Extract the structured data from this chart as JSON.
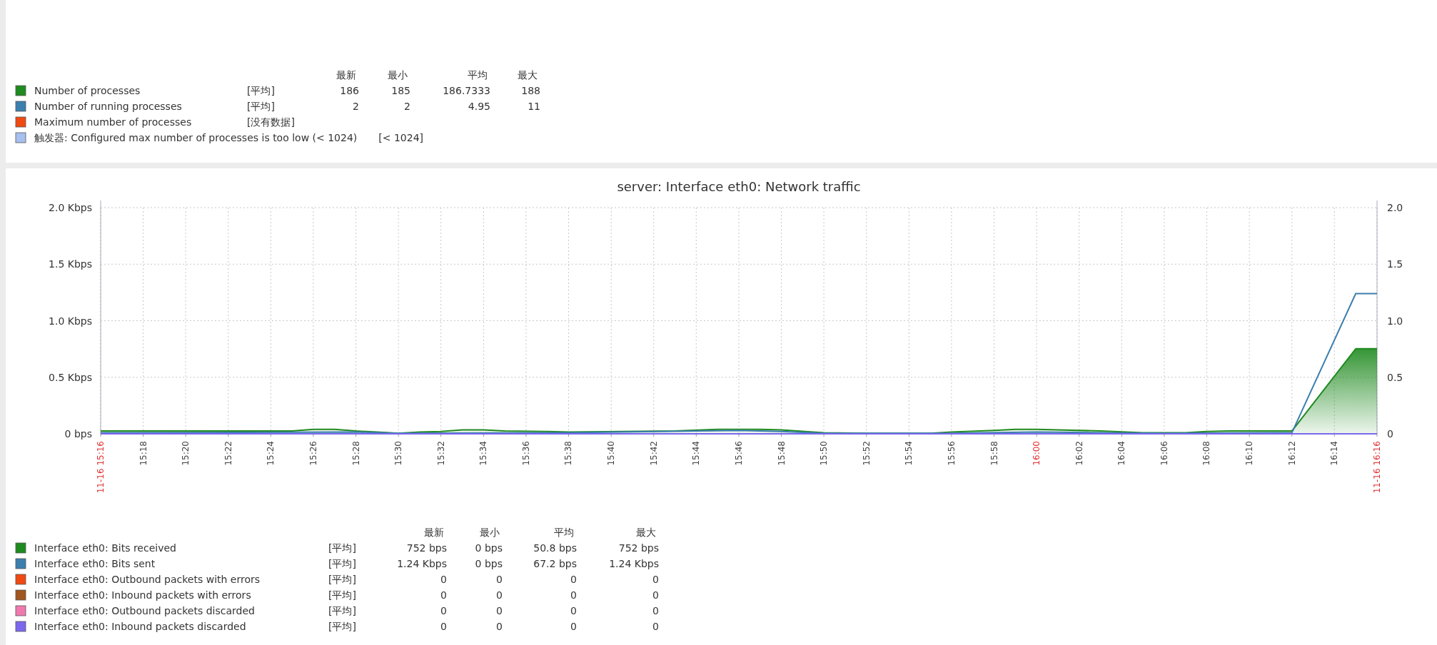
{
  "chart_data": [
    {
      "type": "other",
      "colors": [
        null,
        "#1f8a1f",
        "#3b7fae",
        "#f04a12",
        "#a8c0f0"
      ],
      "annotations": [
        "最新\t最小\t平均\t最大",
        "Number of processes\t[平均]\t186\t185\t186.7333\t188",
        "Number of running processes\t[平均]\t2\t2\t4.95\t11",
        "Maximum number of processes\t[没有数据]",
        "触发器: Configured max number of processes is too low (< 1024)\t[< 1024]"
      ]
    },
    {
      "type": "line",
      "title": "server: Interface eth0: Network traffic",
      "grid": true,
      "legend": "bottom",
      "xlim": [
        15.2667,
        16.2667
      ],
      "xticks": [
        {
          "value": 15.2667,
          "label": "11-16 15:16"
        },
        {
          "value": 15.3,
          "label": "15:18"
        },
        {
          "value": 15.3333,
          "label": "15:20"
        },
        {
          "value": 15.3667,
          "label": "15:22"
        },
        {
          "value": 15.4,
          "label": "15:24"
        },
        {
          "value": 15.4333,
          "label": "15:26"
        },
        {
          "value": 15.4667,
          "label": "15:28"
        },
        {
          "value": 15.5,
          "label": "15:30"
        },
        {
          "value": 15.5333,
          "label": "15:32"
        },
        {
          "value": 15.5667,
          "label": "15:34"
        },
        {
          "value": 15.6,
          "label": "15:36"
        },
        {
          "value": 15.6333,
          "label": "15:38"
        },
        {
          "value": 15.6667,
          "label": "15:40"
        },
        {
          "value": 15.7,
          "label": "15:42"
        },
        {
          "value": 15.7333,
          "label": "15:44"
        },
        {
          "value": 15.7667,
          "label": "15:46"
        },
        {
          "value": 15.8,
          "label": "15:48"
        },
        {
          "value": 15.8333,
          "label": "15:50"
        },
        {
          "value": 15.8667,
          "label": "15:52"
        },
        {
          "value": 15.9,
          "label": "15:54"
        },
        {
          "value": 15.9333,
          "label": "15:56"
        },
        {
          "value": 15.9667,
          "label": "15:58"
        },
        {
          "value": 16,
          "label": "16:00"
        },
        {
          "value": 16.0333,
          "label": "16:02"
        },
        {
          "value": 16.0667,
          "label": "16:04"
        },
        {
          "value": 16.1,
          "label": "16:06"
        },
        {
          "value": 16.1333,
          "label": "16:08"
        },
        {
          "value": 16.1667,
          "label": "16:10"
        },
        {
          "value": 16.2,
          "label": "16:12"
        },
        {
          "value": 16.2333,
          "label": "16:14"
        },
        {
          "value": 16.2667,
          "label": "11-16 16:16"
        }
      ],
      "ylim": [
        0,
        2
      ],
      "yticks": [
        {
          "value": 0,
          "label": "0 bps"
        },
        {
          "value": 0.5,
          "label": "0.5 Kbps"
        },
        {
          "value": 1,
          "label": "1.0 Kbps"
        },
        {
          "value": 1.5,
          "label": "1.5 Kbps"
        },
        {
          "value": 2,
          "label": "2.0 Kbps"
        }
      ],
      "y2lim": [
        0,
        2
      ],
      "y2ticks": [
        0,
        0.5,
        {
          "value": 1,
          "label": "1.0"
        },
        1.5,
        {
          "value": 2,
          "label": "2.0"
        }
      ],
      "annotations": [
        "最新\t最小\t平均\t最大",
        "[平均]\t752 bps\t0 bps\t50.8 bps\t752 bps",
        "[平均]\t1.24 Kbps\t0 bps\t67.2 bps\t1.24 Kbps",
        "[平均]\t0\t0\t0\t0",
        "[平均]\t0\t0\t0\t0",
        "[平均]\t0\t0\t0\t0",
        "[平均]\t0\t0\t0\t0"
      ],
      "series": [
        {
          "name": "Interface eth0: Bits received",
          "type": "area",
          "color": "#1f8a1f",
          "x": [
            15.2667,
            15.4167,
            15.4333,
            15.45,
            15.4667,
            15.4833,
            15.5,
            15.5167,
            15.5333,
            15.55,
            15.5667,
            15.5833,
            15.6167,
            15.6333,
            15.7167,
            15.75,
            15.7833,
            15.8,
            15.8333,
            15.8667,
            15.9167,
            15.9333,
            15.9667,
            15.9833,
            16,
            16.0167,
            16.05,
            16.0833,
            16.1167,
            16.1333,
            16.15,
            16.2,
            16.25,
            16.2667
          ],
          "values": [
            0.025,
            0.025,
            0.04,
            0.04,
            0.025,
            0.015,
            0.005,
            0.015,
            0.02,
            0.035,
            0.035,
            0.025,
            0.02,
            0.015,
            0.025,
            0.04,
            0.04,
            0.035,
            0.01,
            0.005,
            0.005,
            0.015,
            0.03,
            0.04,
            0.04,
            0.035,
            0.025,
            0.01,
            0.01,
            0.02,
            0.025,
            0.025,
            0.752,
            0.752
          ]
        },
        {
          "name": "Interface eth0: Bits sent",
          "type": "line",
          "color": "#3b7fae",
          "x": [
            15.2667,
            15.4667,
            15.5,
            15.6333,
            15.7333,
            15.7667,
            15.8,
            15.8333,
            15.9333,
            16,
            16.05,
            16.1,
            16.2,
            16.25,
            16.2667
          ],
          "values": [
            0.01,
            0.015,
            0.005,
            0.01,
            0.025,
            0.03,
            0.02,
            0.005,
            0.005,
            0.015,
            0.01,
            0.005,
            0.01,
            1.24,
            1.24
          ]
        },
        {
          "name": "Interface eth0: Outbound packets with errors",
          "color": "#f04a12",
          "values": [
            null
          ]
        },
        {
          "name": "Interface eth0: Inbound packets with errors",
          "color": "#a0561e",
          "values": [
            null
          ]
        },
        {
          "name": "Interface eth0: Outbound packets discarded",
          "color": "#f07ab0",
          "values": [
            null
          ]
        },
        {
          "name": "Interface eth0: Inbound packets discarded",
          "type": "line",
          "color": "#7b68ee",
          "x": [
            15.2667,
            16.2667
          ],
          "values": [
            0,
            0
          ]
        }
      ]
    }
  ]
}
